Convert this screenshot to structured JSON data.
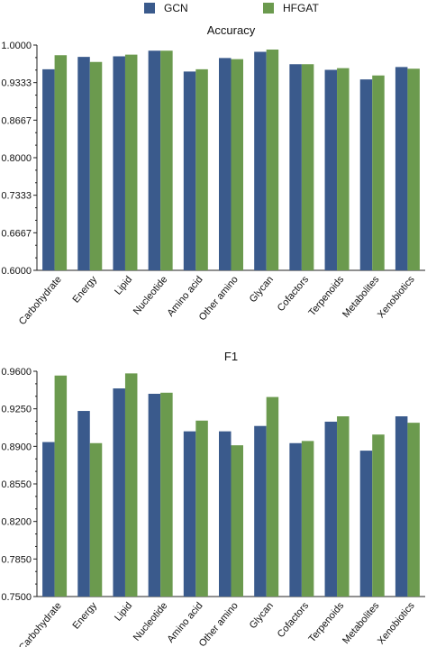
{
  "legend": {
    "items": [
      {
        "label": "GCN",
        "color": "#3a5a8c"
      },
      {
        "label": "HFGAT",
        "color": "#6b9a4e"
      }
    ]
  },
  "chart_data": [
    {
      "type": "bar",
      "title": "Accuracy",
      "categories": [
        "Carbohydrate",
        "Energy",
        "Lipid",
        "Nucleotide",
        "Amino acid",
        "Other amino",
        "Glycan",
        "Cofactors",
        "Terpenoids",
        "Metabolites",
        "Xenobiotics"
      ],
      "series": [
        {
          "name": "GCN",
          "color": "#3a5a8c",
          "values": [
            0.957,
            0.979,
            0.98,
            0.99,
            0.953,
            0.977,
            0.988,
            0.966,
            0.956,
            0.939,
            0.961
          ]
        },
        {
          "name": "HFGAT",
          "color": "#6b9a4e",
          "values": [
            0.982,
            0.97,
            0.983,
            0.99,
            0.957,
            0.975,
            0.992,
            0.966,
            0.959,
            0.946,
            0.958
          ]
        }
      ],
      "ylim": [
        0.6,
        1.0
      ],
      "yticks": [
        "0.6000",
        "0.6667",
        "0.7333",
        "0.8000",
        "0.8667",
        "0.9333",
        "1.0000"
      ],
      "xlabel": "",
      "ylabel": "",
      "grid": false
    },
    {
      "type": "bar",
      "title": "F1",
      "categories": [
        "Carbohydrate",
        "Energy",
        "Lipid",
        "Nucleotide",
        "Amino acid",
        "Other amino",
        "Glycan",
        "Cofactors",
        "Terpenoids",
        "Metabolites",
        "Xenobiotics"
      ],
      "series": [
        {
          "name": "GCN",
          "color": "#3a5a8c",
          "values": [
            0.894,
            0.923,
            0.944,
            0.939,
            0.904,
            0.904,
            0.909,
            0.893,
            0.913,
            0.886,
            0.918
          ]
        },
        {
          "name": "HFGAT",
          "color": "#6b9a4e",
          "values": [
            0.956,
            0.893,
            0.958,
            0.94,
            0.914,
            0.891,
            0.936,
            0.895,
            0.918,
            0.901,
            0.912
          ]
        }
      ],
      "ylim": [
        0.75,
        0.96
      ],
      "yticks": [
        "0.7500",
        "0.7850",
        "0.8200",
        "0.8550",
        "0.8900",
        "0.9250",
        "0.9600"
      ],
      "xlabel": "",
      "ylabel": "",
      "grid": false
    }
  ]
}
